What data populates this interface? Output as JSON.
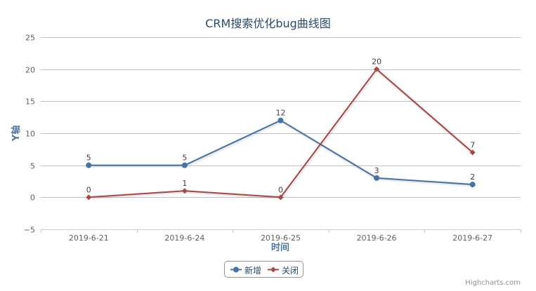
{
  "chart_data": {
    "type": "line",
    "title": "CRM搜索优化bug曲线图",
    "xlabel": "时间",
    "ylabel": "Y轴",
    "categories": [
      "2019-6-21",
      "2019-6-24",
      "2019-6-25",
      "2019-6-26",
      "2019-6-27"
    ],
    "ylim": [
      -5,
      25
    ],
    "yticks": [
      -5,
      0,
      5,
      10,
      15,
      20,
      25
    ],
    "grid": true,
    "legend_position": "bottom-center",
    "series": [
      {
        "name": "新增",
        "color": "#4572a7",
        "marker": "circle",
        "values": [
          5,
          5,
          12,
          3,
          2
        ]
      },
      {
        "name": "关闭",
        "color": "#aa4643",
        "marker": "diamond",
        "values": [
          0,
          1,
          0,
          20,
          7
        ]
      }
    ]
  },
  "credits": "Highcharts.com"
}
